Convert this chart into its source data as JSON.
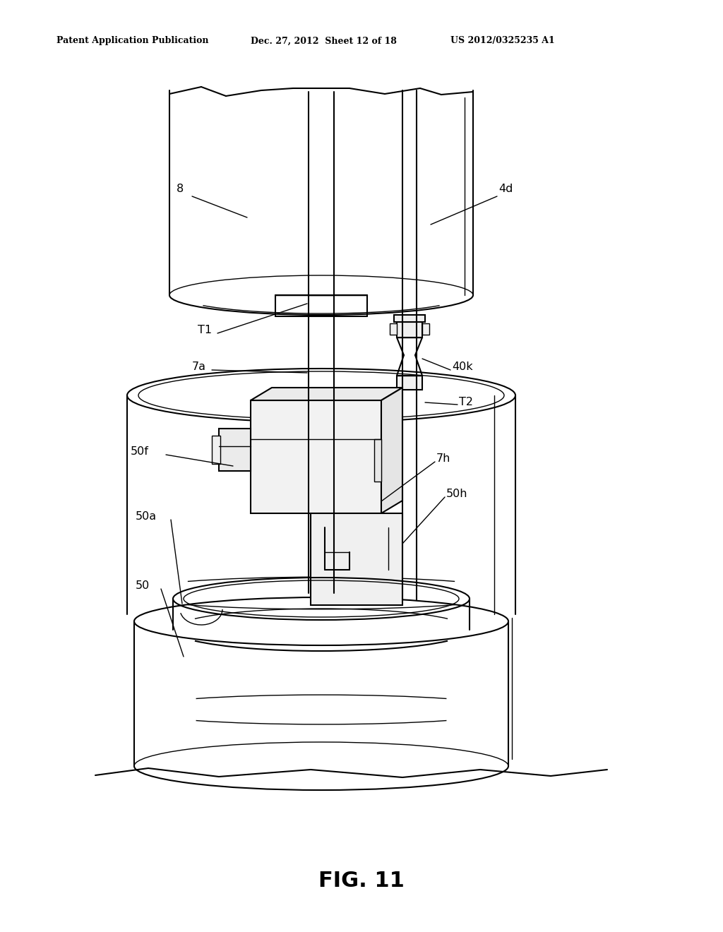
{
  "bg_color": "#ffffff",
  "header_left": "Patent Application Publication",
  "header_mid": "Dec. 27, 2012  Sheet 12 of 18",
  "header_right": "US 2012/0325235 A1",
  "fig_label": "FIG. 11",
  "lw1": 1.0,
  "lw2": 1.5,
  "lw3": 2.2
}
